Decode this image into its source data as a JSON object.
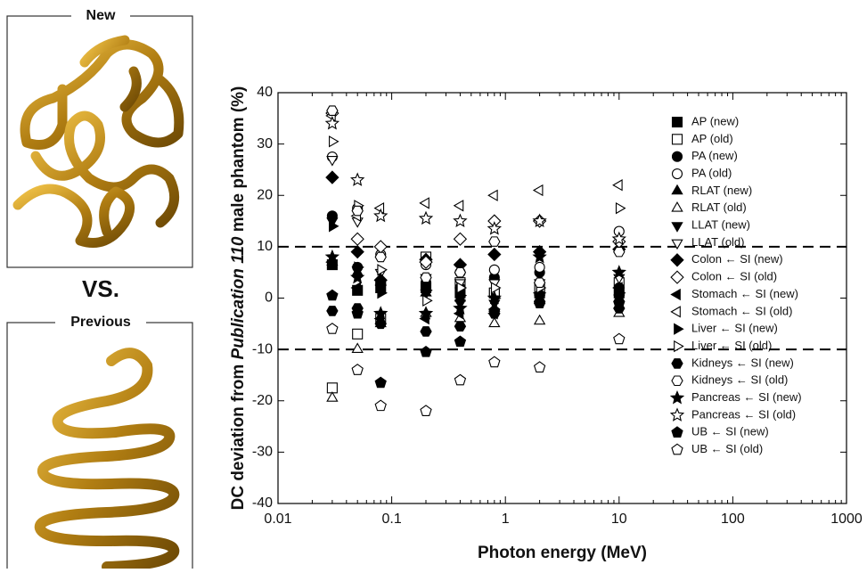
{
  "panels": {
    "new_label": "New",
    "vs": "VS.",
    "previous_label": "Previous"
  },
  "chart_data": {
    "type": "scatter",
    "xlabel": "Photon energy (MeV)",
    "ylabel_parts": [
      "DC deviation from ",
      "Publication 110",
      " male phantom (%)"
    ],
    "x": [
      0.03,
      0.05,
      0.08,
      0.2,
      0.4,
      0.8,
      2,
      10
    ],
    "xlim": [
      0.01,
      1000
    ],
    "xticks": [
      0.01,
      0.1,
      1,
      10,
      100,
      1000
    ],
    "xscale": "log",
    "ylim": [
      -40,
      40
    ],
    "yticks": [
      -40,
      -30,
      -20,
      -10,
      0,
      10,
      20,
      30,
      40
    ],
    "hlines": [
      10,
      -10
    ],
    "legend": "right",
    "series": [
      {
        "name": "AP (new)",
        "marker": "square",
        "filled": true,
        "color": "#000000",
        "values": [
          6.5,
          1.5,
          2,
          2,
          1,
          1,
          1,
          1
        ]
      },
      {
        "name": "AP (old)",
        "marker": "square",
        "filled": false,
        "color": "#000000",
        "values": [
          -17.5,
          -7,
          -4,
          8,
          3,
          1,
          2,
          3
        ]
      },
      {
        "name": "PA (new)",
        "marker": "circle",
        "filled": true,
        "color": "#000000",
        "values": [
          16,
          6,
          3,
          3,
          2,
          4,
          5,
          2
        ]
      },
      {
        "name": "PA (old)",
        "marker": "circle",
        "filled": false,
        "color": "#000000",
        "values": [
          27.5,
          17.5,
          8.5,
          6.5,
          5,
          5.5,
          6,
          13
        ]
      },
      {
        "name": "RLAT (new)",
        "marker": "tri-up",
        "filled": true,
        "color": "#000000",
        "values": [
          7,
          5,
          3,
          1,
          0,
          -2,
          0,
          0
        ]
      },
      {
        "name": "RLAT (old)",
        "marker": "tri-up",
        "filled": false,
        "color": "#000000",
        "values": [
          -19.5,
          -10,
          -5,
          -3,
          -4,
          -5,
          -4.5,
          -3
        ]
      },
      {
        "name": "LLAT (new)",
        "marker": "tri-down",
        "filled": true,
        "color": "#000000",
        "values": [
          15,
          5.5,
          2,
          1,
          -1,
          -1,
          0,
          0
        ]
      },
      {
        "name": "LLAT (old)",
        "marker": "tri-down",
        "filled": false,
        "color": "#000000",
        "values": [
          27,
          15,
          5,
          4,
          3,
          3,
          3,
          4
        ]
      },
      {
        "name": "Colon ← SI (new)",
        "marker": "diamond",
        "filled": true,
        "color": "#000000",
        "values": [
          23.5,
          9,
          3.5,
          7.5,
          6.5,
          8.5,
          9,
          9.5
        ]
      },
      {
        "name": "Colon ← SI (old)",
        "marker": "diamond",
        "filled": false,
        "color": "#000000",
        "values": [
          36,
          11.5,
          10,
          7,
          11.5,
          15,
          15,
          11
        ]
      },
      {
        "name": "Stomach ← SI (new)",
        "marker": "tri-left",
        "filled": true,
        "color": "#000000",
        "values": [
          7,
          2,
          -4,
          -4,
          -3,
          -3,
          1,
          2
        ]
      },
      {
        "name": "Stomach ← SI (old)",
        "marker": "tri-left",
        "filled": false,
        "color": "#000000",
        "values": [
          35.5,
          16,
          17.5,
          18.5,
          18,
          20,
          21,
          22
        ]
      },
      {
        "name": "Liver ← SI (new)",
        "marker": "tri-right",
        "filled": true,
        "color": "#000000",
        "values": [
          14,
          6,
          1,
          1.5,
          0.5,
          0,
          1,
          1
        ]
      },
      {
        "name": "Liver ← SI (old)",
        "marker": "tri-right",
        "filled": false,
        "color": "#000000",
        "values": [
          30.5,
          18,
          5.5,
          -0.5,
          2,
          2,
          2,
          17.5
        ]
      },
      {
        "name": "Kidneys ← SI (new)",
        "marker": "hexagon",
        "filled": true,
        "color": "#000000",
        "values": [
          -2.5,
          -2,
          -5,
          -6.5,
          -5.5,
          -3,
          -1,
          -2
        ]
      },
      {
        "name": "Kidneys ← SI (old)",
        "marker": "hexagon",
        "filled": false,
        "color": "#000000",
        "values": [
          36.5,
          17,
          8,
          4,
          5,
          11,
          3,
          9
        ]
      },
      {
        "name": "Pancreas ← SI (new)",
        "marker": "star",
        "filled": true,
        "color": "#000000",
        "values": [
          8,
          4,
          -3,
          -3,
          -2,
          0,
          8,
          5
        ]
      },
      {
        "name": "Pancreas ← SI (old)",
        "marker": "star",
        "filled": false,
        "color": "#000000",
        "values": [
          34,
          23,
          16,
          15.5,
          15,
          13.5,
          15,
          11.5
        ]
      },
      {
        "name": "UB ← SI (new)",
        "marker": "pentagon",
        "filled": true,
        "color": "#000000",
        "values": [
          0.5,
          -3,
          -16.5,
          -10.5,
          -8.5,
          -2.5,
          -1,
          -1
        ]
      },
      {
        "name": "UB ← SI (old)",
        "marker": "pentagon",
        "filled": false,
        "color": "#000000",
        "values": [
          -6,
          -14,
          -21,
          -22,
          -16,
          -12.5,
          -13.5,
          -8
        ]
      }
    ]
  }
}
